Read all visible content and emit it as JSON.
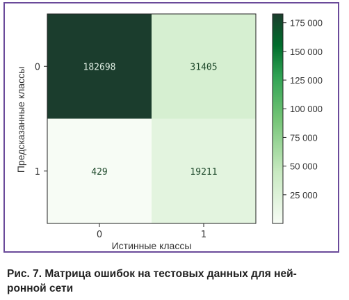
{
  "figure": {
    "caption_line1": "Рис. 7. Матрица ошибок на тестовых данных для ней-",
    "caption_line2": "ронной сети",
    "frame_color": "#6a4a9a"
  },
  "chart_data": {
    "type": "heatmap",
    "title": "",
    "xlabel": "Истинные классы",
    "ylabel": "Предсказанные классы",
    "x_categories": [
      "0",
      "1"
    ],
    "y_categories": [
      "0",
      "1"
    ],
    "values": [
      [
        182698,
        31405
      ],
      [
        429,
        19211
      ]
    ],
    "colormap": "Greens",
    "colorbar": {
      "min": 0,
      "max": 182698,
      "ticks": [
        25000,
        50000,
        75000,
        100000,
        125000,
        150000,
        175000
      ],
      "tick_labels": [
        "25 000",
        "50 000",
        "75 000",
        "100 000",
        "125 000",
        "150 000",
        "175 000"
      ]
    },
    "grid": false
  }
}
